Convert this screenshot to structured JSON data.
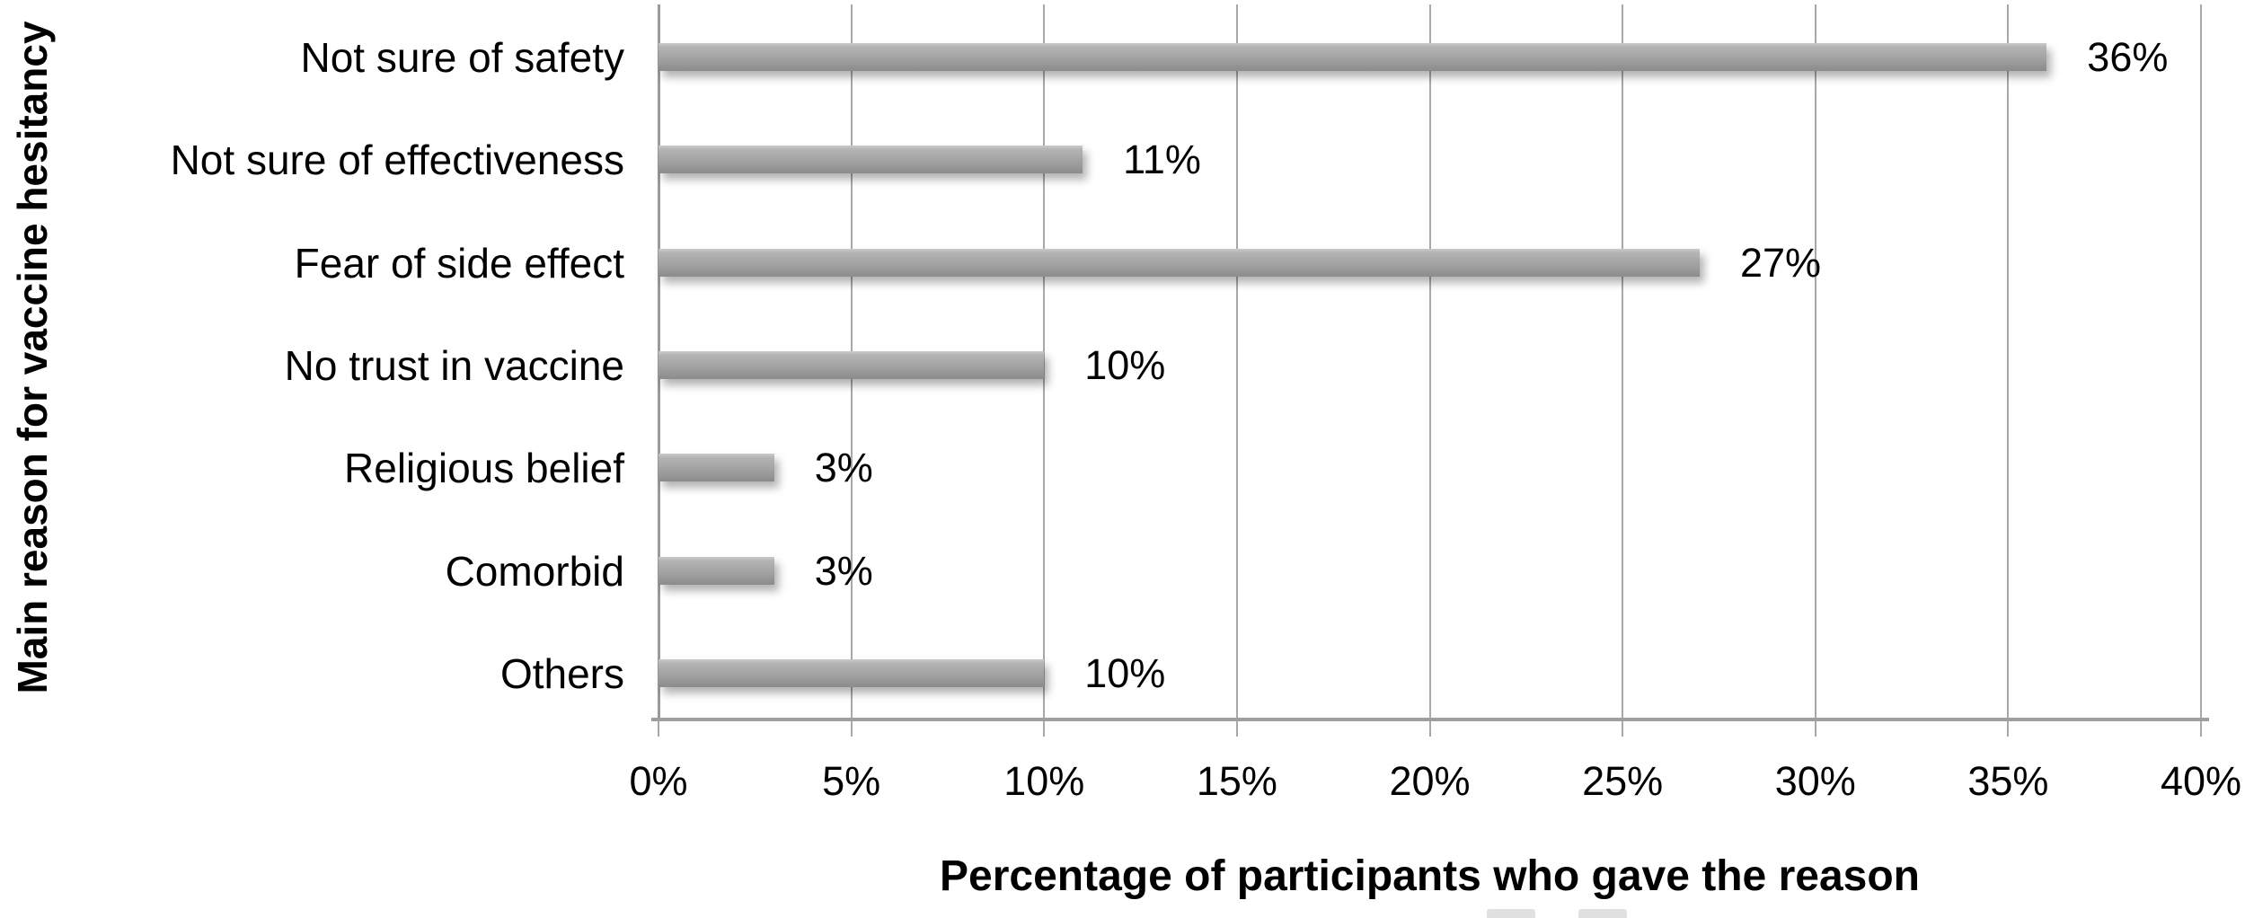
{
  "chart_data": {
    "type": "bar",
    "orientation": "horizontal",
    "categories": [
      "Not sure of safety",
      "Not sure of effectiveness",
      "Fear of side effect",
      "No trust in vaccine",
      "Religious belief",
      "Comorbid",
      "Others"
    ],
    "values": [
      36,
      11,
      27,
      10,
      3,
      3,
      10
    ],
    "data_labels": [
      "36%",
      "11%",
      "27%",
      "10%",
      "3%",
      "3%",
      "10%"
    ],
    "xlabel": "Percentage of participants who gave the reason",
    "ylabel": "Main reason for vaccine hesitancy",
    "xlim": [
      0,
      40
    ],
    "xtick_values": [
      0,
      5,
      10,
      15,
      20,
      25,
      30,
      35,
      40
    ],
    "xtick_labels": [
      "0%",
      "5%",
      "10%",
      "15%",
      "20%",
      "25%",
      "30%",
      "35%",
      "40%"
    ],
    "grid": "vertical gridlines on, every 5%",
    "legend": "none (cropped legend remnants visible at bottom edge)",
    "bar_color": "#a6a6a6",
    "gridline_color": "#a8a8a8",
    "text_color": "#000000",
    "background_color": "#ffffff"
  }
}
